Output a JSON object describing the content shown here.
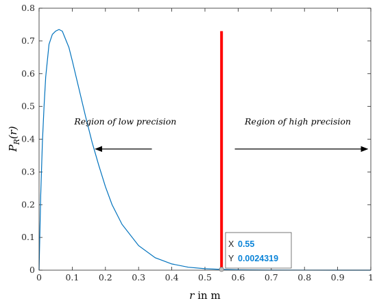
{
  "chart_data": {
    "type": "line",
    "xlabel_var": "r",
    "xlabel_rest": " in m",
    "ylabel_main": "P",
    "ylabel_sub": "R",
    "ylabel_arg": "(r)",
    "xlim": [
      0,
      1
    ],
    "ylim": [
      0,
      0.8
    ],
    "xticks": [
      "0",
      "0.1",
      "0.2",
      "0.3",
      "0.4",
      "0.5",
      "0.6",
      "0.7",
      "0.8",
      "0.9",
      "1"
    ],
    "yticks": [
      "0",
      "0.1",
      "0.2",
      "0.3",
      "0.4",
      "0.5",
      "0.6",
      "0.7",
      "0.8"
    ],
    "grid": false,
    "series": [
      {
        "color": "#0072bd",
        "x": [
          0,
          0.005,
          0.01,
          0.015,
          0.02,
          0.03,
          0.04,
          0.05,
          0.06,
          0.07,
          0.08,
          0.09,
          0.1,
          0.12,
          0.14,
          0.16,
          0.18,
          0.2,
          0.22,
          0.25,
          0.3,
          0.35,
          0.4,
          0.45,
          0.5,
          0.55,
          0.6,
          0.7,
          0.8,
          0.9,
          1.0
        ],
        "y": [
          0,
          0.23,
          0.39,
          0.5,
          0.59,
          0.69,
          0.72,
          0.73,
          0.735,
          0.73,
          0.705,
          0.68,
          0.64,
          0.555,
          0.47,
          0.39,
          0.32,
          0.255,
          0.2,
          0.14,
          0.075,
          0.038,
          0.019,
          0.009,
          0.0045,
          0.0024319,
          0.0012,
          0.0003,
          0.0001,
          2e-05,
          0
        ]
      }
    ],
    "threshold_line": {
      "x": 0.55,
      "y_top": 0.73,
      "color": "#ff0000"
    },
    "annotations": [
      {
        "text": "Region of low precision",
        "arrow_from_x": 0.34,
        "arrow_to_x": 0.17,
        "y": 0.37
      },
      {
        "text": "Region of high precision",
        "arrow_from_x": 0.59,
        "arrow_to_x": 0.99,
        "y": 0.37
      }
    ],
    "datatip": {
      "x_key": "X",
      "x_value": "0.55",
      "y_key": "Y",
      "y_value": "0.0024319",
      "point_x": 0.55,
      "point_y": 0.0024319
    }
  }
}
